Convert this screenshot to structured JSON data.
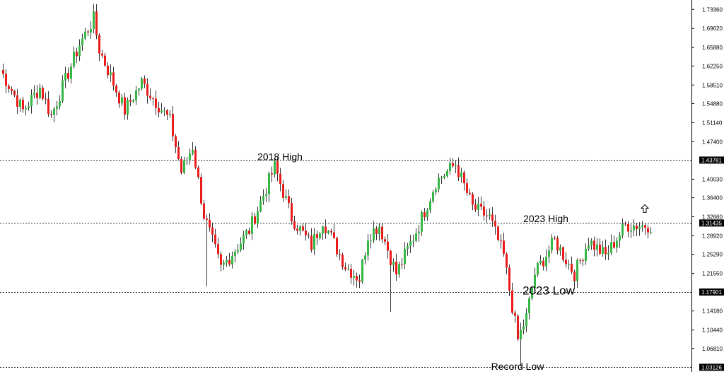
{
  "chart_data": {
    "type": "candlestick",
    "ylim": [
      1.022,
      1.752
    ],
    "y_ticks": [
      "1.73360",
      "1.69620",
      "1.65880",
      "1.62250",
      "1.58510",
      "1.54880",
      "1.51140",
      "1.47400",
      "1.40030",
      "1.36400",
      "1.32660",
      "1.28920",
      "1.25290",
      "1.21550",
      "1.14180",
      "1.10440",
      "1.06810"
    ],
    "levels": [
      {
        "value": 1.43781,
        "label": "1.43781"
      },
      {
        "value": 1.31435,
        "label": "1.31435"
      },
      {
        "value": 1.17901,
        "label": "1.17901"
      },
      {
        "value": 1.03126,
        "label": "1.03126"
      }
    ],
    "annotations": [
      {
        "text": "2018 High",
        "index": 98,
        "value": 1.438,
        "size": "medium"
      },
      {
        "text": "2023 High",
        "index": 192,
        "value": 1.316,
        "size": "medium"
      },
      {
        "text": "2023 Low",
        "index": 193,
        "value": 1.174,
        "size": "large"
      },
      {
        "text": "Record Low",
        "index": 182,
        "value": 1.026,
        "size": "medium"
      }
    ],
    "arrow_marker": {
      "index": 227,
      "value": 1.342,
      "direction": "up"
    },
    "colors": {
      "up": "#35b745",
      "down": "#ea1b1b",
      "wick": "#333333",
      "level": "#333333",
      "tag_bg": "#000000",
      "tag_text": "#ffffff"
    },
    "pivots": [
      [
        0,
        1.615
      ],
      [
        8,
        1.535
      ],
      [
        14,
        1.58
      ],
      [
        18,
        1.525
      ],
      [
        28,
        1.665
      ],
      [
        33,
        1.715
      ],
      [
        35,
        1.655
      ],
      [
        44,
        1.535
      ],
      [
        50,
        1.59
      ],
      [
        60,
        1.515
      ],
      [
        64,
        1.415
      ],
      [
        68,
        1.465
      ],
      [
        72,
        1.33
      ],
      [
        78,
        1.225
      ],
      [
        88,
        1.3
      ],
      [
        97,
        1.425
      ],
      [
        103,
        1.325
      ],
      [
        110,
        1.27
      ],
      [
        114,
        1.32
      ],
      [
        122,
        1.23
      ],
      [
        127,
        1.205
      ],
      [
        130,
        1.29
      ],
      [
        134,
        1.31
      ],
      [
        140,
        1.215
      ],
      [
        148,
        1.31
      ],
      [
        154,
        1.395
      ],
      [
        161,
        1.43
      ],
      [
        167,
        1.345
      ],
      [
        173,
        1.325
      ],
      [
        178,
        1.25
      ],
      [
        183,
        1.085
      ],
      [
        186,
        1.13
      ],
      [
        189,
        1.215
      ],
      [
        196,
        1.28
      ],
      [
        203,
        1.215
      ],
      [
        208,
        1.28
      ],
      [
        214,
        1.25
      ],
      [
        221,
        1.31
      ]
    ],
    "spikes": [
      {
        "index": 73,
        "low": 1.19
      },
      {
        "index": 138,
        "low": 1.14
      },
      {
        "index": 184,
        "low": 1.033
      }
    ]
  }
}
